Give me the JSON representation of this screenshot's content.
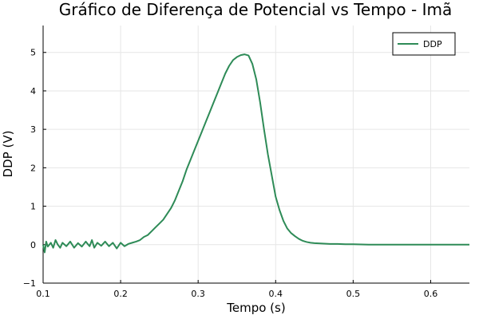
{
  "chart_data": {
    "type": "line",
    "title": "Gráfico de Diferença de Potencial vs Tempo - Imã",
    "xlabel": "Tempo (s)",
    "ylabel": "DDP (V)",
    "xlim": [
      0.1,
      0.65
    ],
    "ylim": [
      -1,
      5.7
    ],
    "xticks": [
      0.1,
      0.2,
      0.3,
      0.4,
      0.5,
      0.6
    ],
    "xtick_labels": [
      "0.1",
      "0.2",
      "0.3",
      "0.4",
      "0.5",
      "0.6"
    ],
    "yticks": [
      -1,
      0,
      1,
      2,
      3,
      4,
      5
    ],
    "ytick_labels": [
      "−1",
      "0",
      "1",
      "2",
      "3",
      "4",
      "5"
    ],
    "grid": true,
    "legend_position": "top-right",
    "series": [
      {
        "name": "DDP",
        "color": "#2e8b57",
        "points": [
          [
            0.1,
            0.0
          ],
          [
            0.102,
            -0.2
          ],
          [
            0.104,
            0.08
          ],
          [
            0.106,
            -0.05
          ],
          [
            0.11,
            0.05
          ],
          [
            0.113,
            -0.08
          ],
          [
            0.116,
            0.12
          ],
          [
            0.119,
            0.0
          ],
          [
            0.122,
            -0.08
          ],
          [
            0.125,
            0.05
          ],
          [
            0.13,
            -0.04
          ],
          [
            0.135,
            0.08
          ],
          [
            0.14,
            -0.08
          ],
          [
            0.145,
            0.04
          ],
          [
            0.15,
            -0.05
          ],
          [
            0.155,
            0.08
          ],
          [
            0.16,
            -0.04
          ],
          [
            0.163,
            0.12
          ],
          [
            0.166,
            -0.08
          ],
          [
            0.17,
            0.05
          ],
          [
            0.175,
            -0.03
          ],
          [
            0.18,
            0.08
          ],
          [
            0.185,
            -0.04
          ],
          [
            0.19,
            0.05
          ],
          [
            0.195,
            -0.1
          ],
          [
            0.2,
            0.05
          ],
          [
            0.205,
            -0.04
          ],
          [
            0.21,
            0.02
          ],
          [
            0.215,
            0.05
          ],
          [
            0.22,
            0.08
          ],
          [
            0.225,
            0.12
          ],
          [
            0.23,
            0.2
          ],
          [
            0.235,
            0.25
          ],
          [
            0.24,
            0.35
          ],
          [
            0.245,
            0.45
          ],
          [
            0.25,
            0.55
          ],
          [
            0.255,
            0.65
          ],
          [
            0.26,
            0.8
          ],
          [
            0.265,
            0.95
          ],
          [
            0.27,
            1.15
          ],
          [
            0.275,
            1.4
          ],
          [
            0.28,
            1.65
          ],
          [
            0.285,
            1.95
          ],
          [
            0.29,
            2.2
          ],
          [
            0.295,
            2.45
          ],
          [
            0.3,
            2.7
          ],
          [
            0.305,
            2.95
          ],
          [
            0.31,
            3.2
          ],
          [
            0.315,
            3.45
          ],
          [
            0.32,
            3.7
          ],
          [
            0.325,
            3.95
          ],
          [
            0.33,
            4.2
          ],
          [
            0.335,
            4.45
          ],
          [
            0.34,
            4.65
          ],
          [
            0.345,
            4.8
          ],
          [
            0.35,
            4.88
          ],
          [
            0.355,
            4.93
          ],
          [
            0.36,
            4.95
          ],
          [
            0.365,
            4.92
          ],
          [
            0.37,
            4.7
          ],
          [
            0.375,
            4.3
          ],
          [
            0.38,
            3.7
          ],
          [
            0.385,
            3.0
          ],
          [
            0.39,
            2.35
          ],
          [
            0.395,
            1.8
          ],
          [
            0.4,
            1.25
          ],
          [
            0.405,
            0.9
          ],
          [
            0.41,
            0.62
          ],
          [
            0.415,
            0.42
          ],
          [
            0.42,
            0.3
          ],
          [
            0.425,
            0.22
          ],
          [
            0.43,
            0.15
          ],
          [
            0.435,
            0.1
          ],
          [
            0.44,
            0.07
          ],
          [
            0.445,
            0.05
          ],
          [
            0.45,
            0.04
          ],
          [
            0.46,
            0.03
          ],
          [
            0.47,
            0.02
          ],
          [
            0.48,
            0.02
          ],
          [
            0.49,
            0.01
          ],
          [
            0.5,
            0.01
          ],
          [
            0.52,
            0.0
          ],
          [
            0.54,
            0.0
          ],
          [
            0.56,
            0.0
          ],
          [
            0.58,
            0.0
          ],
          [
            0.6,
            0.0
          ],
          [
            0.62,
            0.0
          ],
          [
            0.65,
            0.0
          ]
        ]
      }
    ]
  }
}
